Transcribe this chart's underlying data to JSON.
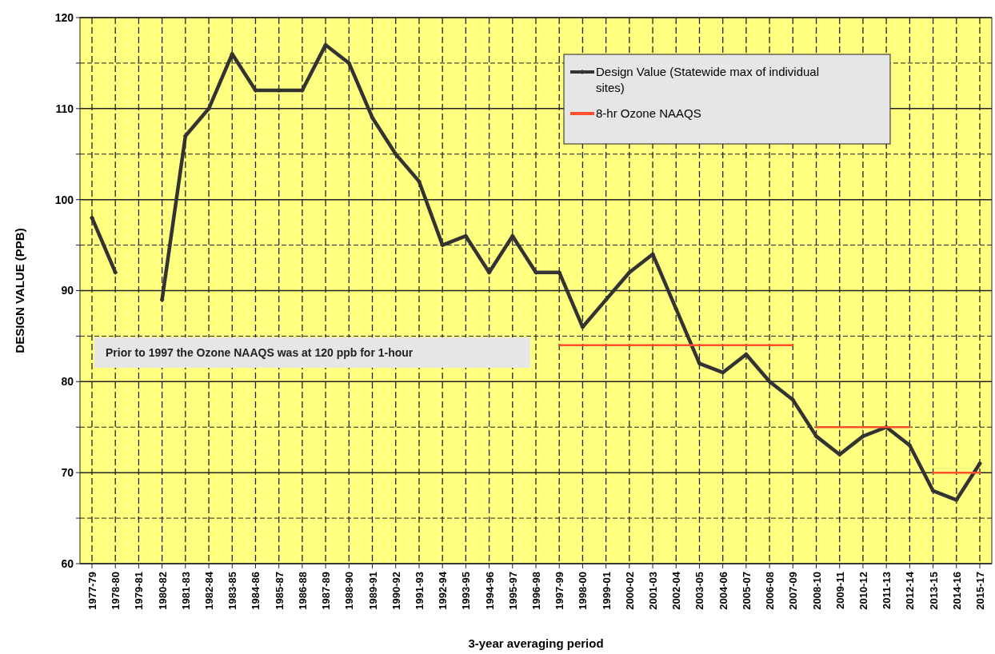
{
  "chart_data": {
    "type": "line",
    "xlabel": "3-year averaging period",
    "ylabel": "DESIGN VALUE (PPB)",
    "categories": [
      "1977-79",
      "1978-80",
      "1979-81",
      "1980-82",
      "1981-83",
      "1982-84",
      "1983-85",
      "1984-86",
      "1985-87",
      "1986-88",
      "1987-89",
      "1988-90",
      "1989-91",
      "1990-92",
      "1991-93",
      "1992-94",
      "1993-95",
      "1994-96",
      "1995-97",
      "1996-98",
      "1997-99",
      "1998-00",
      "1999-01",
      "2000-02",
      "2001-03",
      "2002-04",
      "2003-05",
      "2004-06",
      "2005-07",
      "2006-08",
      "2007-09",
      "2008-10",
      "2009-11",
      "2010-12",
      "2011-13",
      "2012-14",
      "2013-15",
      "2014-16",
      "2015-17"
    ],
    "series": [
      {
        "name": "Design Value (Statewide max of individual sites)",
        "color": "#333333",
        "marker": "diamond",
        "values": [
          98,
          92,
          null,
          89,
          107,
          110,
          116,
          112,
          112,
          112,
          117,
          115,
          109,
          105,
          102,
          95,
          96,
          92,
          96,
          92,
          92,
          86,
          89,
          92,
          94,
          88,
          82,
          81,
          83,
          80,
          78,
          74,
          72,
          74,
          75,
          73,
          68,
          67,
          71
        ]
      },
      {
        "name": "8-hr Ozone NAAQS",
        "color": "#ff4f2e",
        "marker": "none",
        "values": [
          null,
          null,
          null,
          null,
          null,
          null,
          null,
          null,
          null,
          null,
          null,
          null,
          null,
          null,
          null,
          null,
          null,
          null,
          null,
          null,
          84,
          84,
          84,
          84,
          84,
          84,
          84,
          84,
          84,
          84,
          84,
          null,
          null,
          null,
          null,
          null,
          null,
          null,
          null
        ]
      },
      {
        "color": "#ff4f2e",
        "marker": "none",
        "values": [
          null,
          null,
          null,
          null,
          null,
          null,
          null,
          null,
          null,
          null,
          null,
          null,
          null,
          null,
          null,
          null,
          null,
          null,
          null,
          null,
          null,
          null,
          null,
          null,
          null,
          null,
          null,
          null,
          null,
          null,
          null,
          75,
          75,
          75,
          75,
          75,
          null,
          null,
          null
        ]
      },
      {
        "color": "#ff4f2e",
        "marker": "none",
        "values": [
          null,
          null,
          null,
          null,
          null,
          null,
          null,
          null,
          null,
          null,
          null,
          null,
          null,
          null,
          null,
          null,
          null,
          null,
          null,
          null,
          null,
          null,
          null,
          null,
          null,
          null,
          null,
          null,
          null,
          null,
          null,
          null,
          null,
          null,
          null,
          null,
          70,
          70,
          70
        ]
      }
    ],
    "ylim": [
      60,
      120
    ],
    "yticks": [
      60,
      {
        "value": 65,
        "label": null
      },
      70,
      {
        "value": 75,
        "label": null
      },
      80,
      {
        "value": 85,
        "label": null
      },
      90,
      {
        "value": 95,
        "label": null
      },
      100,
      {
        "value": 105,
        "label": null
      },
      110,
      {
        "value": 115,
        "label": null
      },
      120
    ],
    "grid": true,
    "legend": "top right",
    "annotations": [
      "Prior to 1997 the Ozone NAAQS was at 120 ppb for 1-hour"
    ]
  }
}
